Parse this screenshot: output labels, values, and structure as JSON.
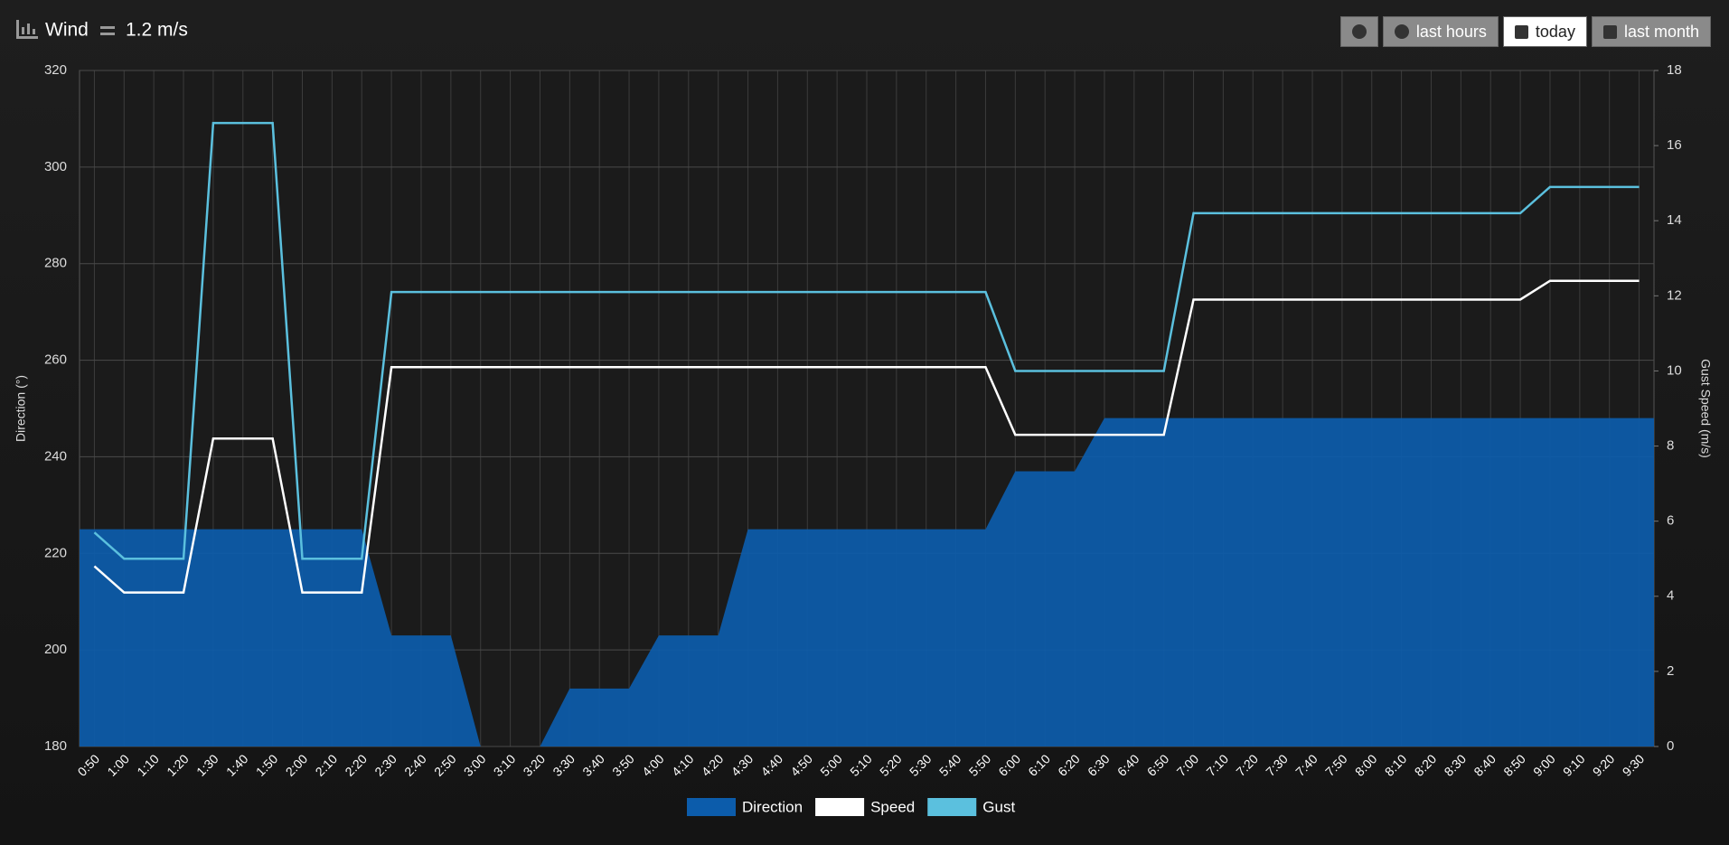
{
  "header": {
    "title": "Wind",
    "value": "1.2 m/s"
  },
  "buttons": [
    "last hours",
    "today",
    "last month"
  ],
  "chart_data": {
    "type": "combo",
    "categories": [
      "0:50",
      "1:00",
      "1:10",
      "1:20",
      "1:30",
      "1:40",
      "1:50",
      "2:00",
      "2:10",
      "2:20",
      "2:30",
      "2:40",
      "2:50",
      "3:00",
      "3:10",
      "3:20",
      "3:30",
      "3:40",
      "3:50",
      "4:00",
      "4:10",
      "4:20",
      "4:30",
      "4:40",
      "4:50",
      "5:00",
      "5:10",
      "5:20",
      "5:30",
      "5:40",
      "5:50",
      "6:00",
      "6:10",
      "6:20",
      "6:30",
      "6:40",
      "6:50",
      "7:00",
      "7:10",
      "7:20",
      "7:30",
      "7:40",
      "7:50",
      "8:00",
      "8:10",
      "8:20",
      "8:30",
      "8:40",
      "8:50",
      "9:00",
      "9:10",
      "9:20",
      "9:30"
    ],
    "ylabel": "Direction (°)",
    "y2label": "Gust Speed (m/s)",
    "ylim": [
      180,
      320
    ],
    "yticks": [
      180,
      200,
      220,
      240,
      260,
      280,
      300,
      320
    ],
    "y2lim": [
      0,
      18
    ],
    "y2ticks": [
      0,
      2,
      4,
      6,
      8,
      10,
      12,
      14,
      16,
      18
    ],
    "grid": true,
    "legend": "bottom",
    "series": [
      {
        "name": "Direction",
        "kind": "area",
        "color": "#0c5cab",
        "values": [
          225,
          225,
          225,
          225,
          225,
          225,
          225,
          225,
          225,
          225,
          203,
          203,
          203,
          180,
          180,
          180,
          192,
          192,
          192,
          203,
          203,
          203,
          225,
          225,
          225,
          225,
          225,
          225,
          225,
          225,
          225,
          237,
          237,
          237,
          248,
          248,
          248,
          248,
          248,
          248,
          248,
          248,
          248,
          248,
          248,
          248,
          248,
          248,
          248,
          248,
          248,
          248,
          248
        ]
      },
      {
        "name": "Speed",
        "kind": "line",
        "color": "#ffffff",
        "axis": "y2",
        "values": [
          4.8,
          4.1,
          4.1,
          4.1,
          8.2,
          8.2,
          8.2,
          4.1,
          4.1,
          4.1,
          10.1,
          10.1,
          10.1,
          10.1,
          10.1,
          10.1,
          10.1,
          10.1,
          10.1,
          10.1,
          10.1,
          10.1,
          10.1,
          10.1,
          10.1,
          10.1,
          10.1,
          10.1,
          10.1,
          10.1,
          10.1,
          8.3,
          8.3,
          8.3,
          8.3,
          8.3,
          8.3,
          11.9,
          11.9,
          11.9,
          11.9,
          11.9,
          11.9,
          11.9,
          11.9,
          11.9,
          11.9,
          11.9,
          11.9,
          12.4,
          12.4,
          12.4,
          12.4
        ]
      },
      {
        "name": "Gust",
        "kind": "line",
        "color": "#5bc0de",
        "axis": "y2",
        "values": [
          5.7,
          5.0,
          5.0,
          5.0,
          16.6,
          16.6,
          16.6,
          5.0,
          5.0,
          5.0,
          12.1,
          12.1,
          12.1,
          12.1,
          12.1,
          12.1,
          12.1,
          12.1,
          12.1,
          12.1,
          12.1,
          12.1,
          12.1,
          12.1,
          12.1,
          12.1,
          12.1,
          12.1,
          12.1,
          12.1,
          12.1,
          10.0,
          10.0,
          10.0,
          10.0,
          10.0,
          10.0,
          14.2,
          14.2,
          14.2,
          14.2,
          14.2,
          14.2,
          14.2,
          14.2,
          14.2,
          14.2,
          14.2,
          14.2,
          14.9,
          14.9,
          14.9,
          14.9
        ]
      }
    ]
  }
}
